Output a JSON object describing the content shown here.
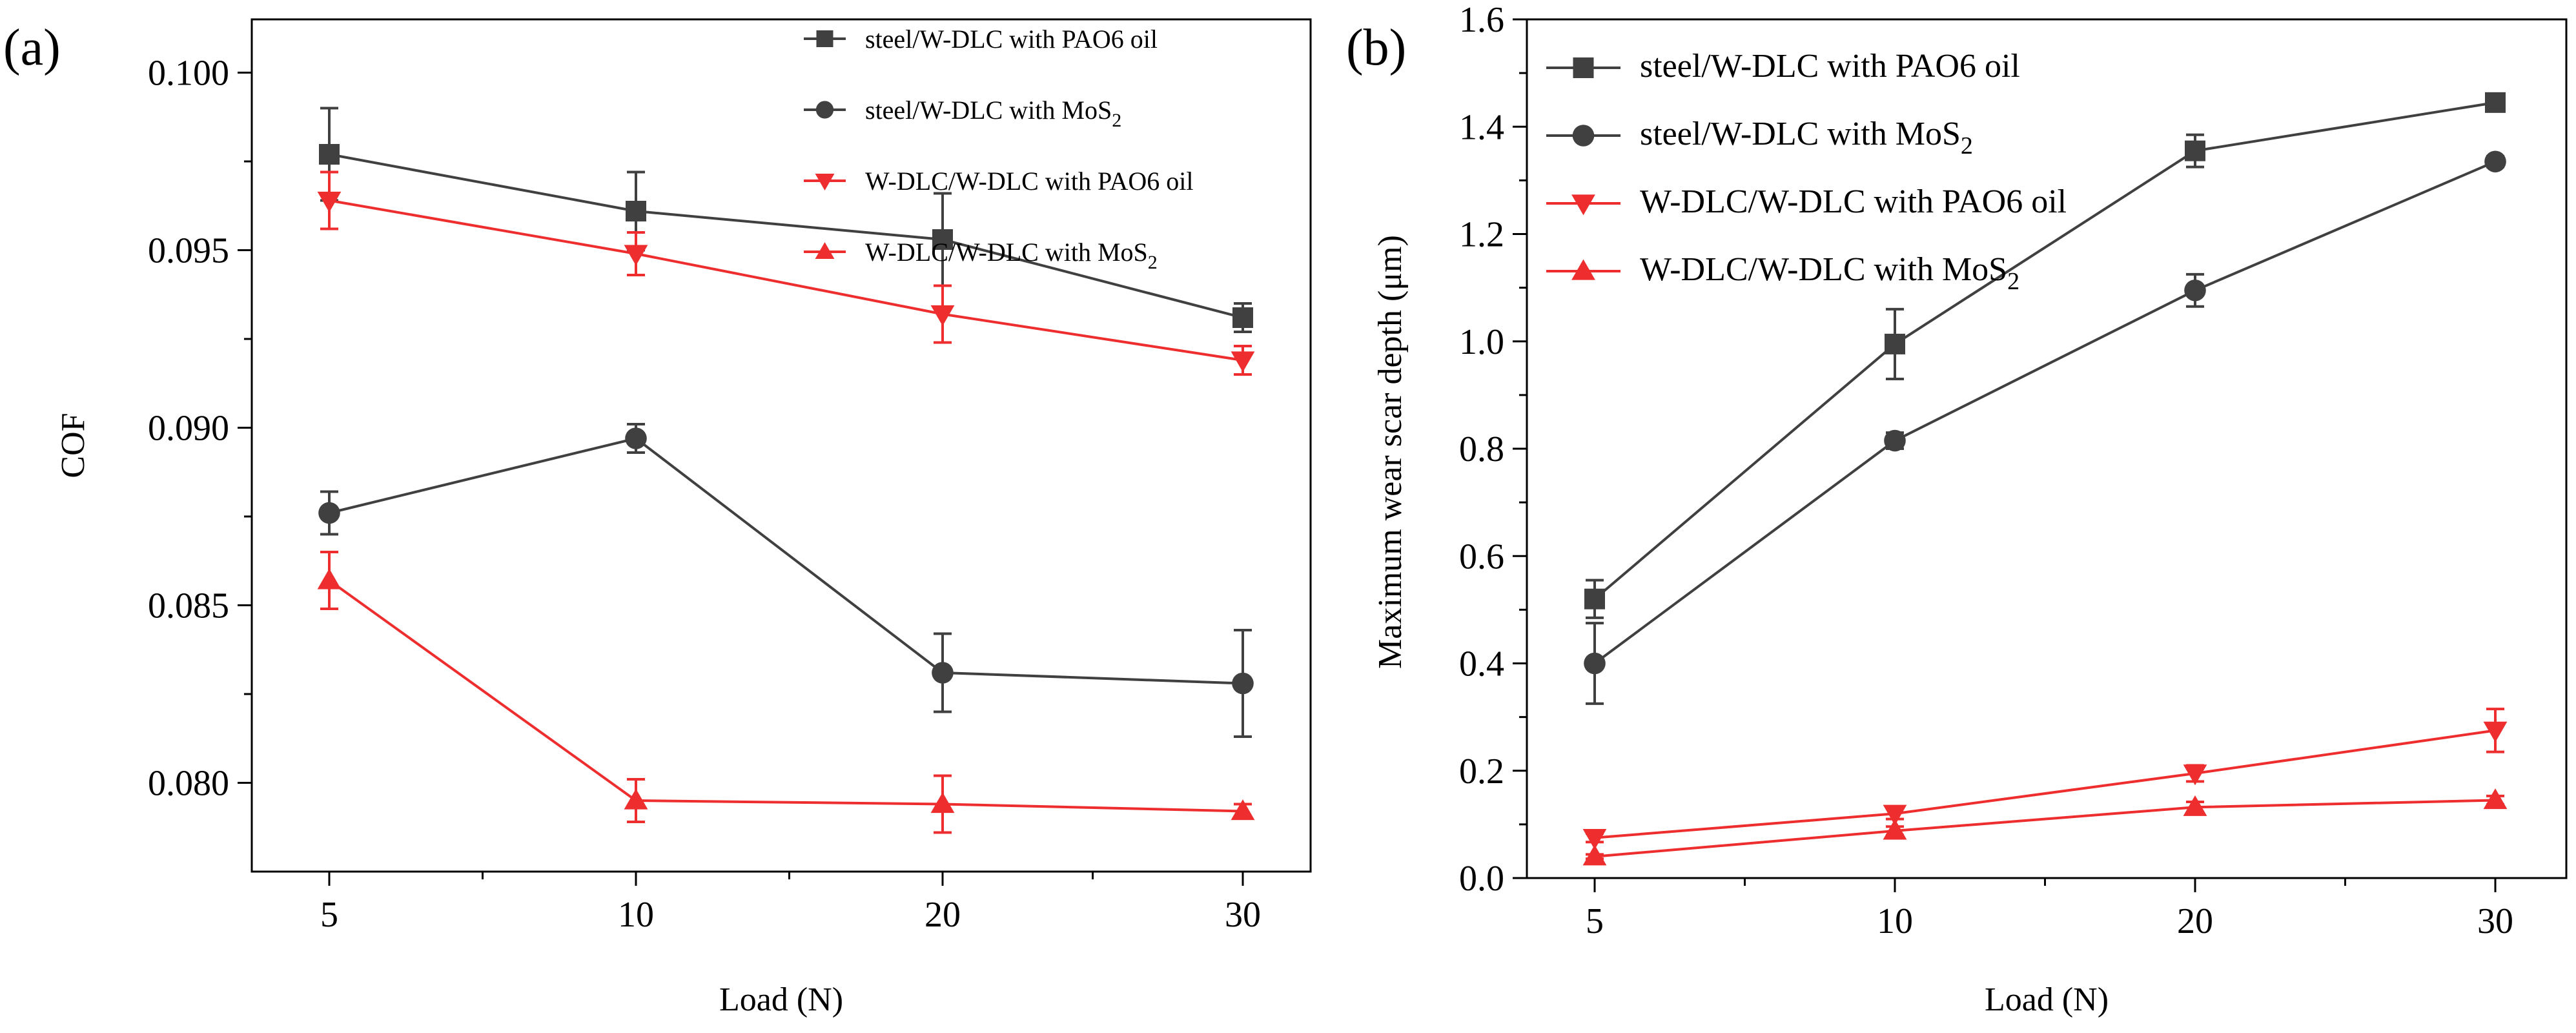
{
  "colors": {
    "black_series": "#404040",
    "red_series": "#ee2e2e"
  },
  "chart_data": [
    {
      "panel_label": "(a)",
      "type": "line",
      "title": "",
      "xlabel": "Load (N)",
      "ylabel": "COF",
      "categories": [
        "5",
        "10",
        "20",
        "30"
      ],
      "ylim": [
        0.0775,
        0.1015
      ],
      "yticks": [
        "0.080",
        "0.085",
        "0.090",
        "0.095",
        "0.100"
      ],
      "ytick_values": [
        0.08,
        0.085,
        0.09,
        0.095,
        0.1
      ],
      "legend_position": "top-right",
      "series": [
        {
          "name": "steel/W-DLC with PAO6 oil",
          "name_main": "steel/W-DLC with PAO6 oil",
          "name_sub": "",
          "name_tail": "",
          "marker": "square",
          "color": "#404040",
          "values": [
            0.0977,
            0.0961,
            0.0953,
            0.0931
          ],
          "errors": [
            0.0013,
            0.0011,
            0.0013,
            0.0004
          ]
        },
        {
          "name": "steel/W-DLC with MoS2",
          "name_main": "steel/W-DLC with MoS",
          "name_sub": "2",
          "name_tail": "",
          "marker": "circle",
          "color": "#404040",
          "values": [
            0.0876,
            0.0897,
            0.0831,
            0.0828
          ],
          "errors": [
            0.0006,
            0.0004,
            0.0011,
            0.0015
          ]
        },
        {
          "name": "W-DLC/W-DLC with PAO6 oil",
          "name_main": "W-DLC/W-DLC with PAO6 oil",
          "name_sub": "",
          "name_tail": "",
          "marker": "triangle-down",
          "color": "#ee2e2e",
          "values": [
            0.0964,
            0.0949,
            0.0932,
            0.0919
          ],
          "errors": [
            0.0008,
            0.0006,
            0.0008,
            0.0004
          ]
        },
        {
          "name": "W-DLC/W-DLC with MoS2",
          "name_main": "W-DLC/W-DLC with MoS",
          "name_sub": "2",
          "name_tail": "",
          "marker": "triangle-up",
          "color": "#ee2e2e",
          "values": [
            0.0857,
            0.0795,
            0.0794,
            0.0792
          ],
          "errors": [
            0.0008,
            0.0006,
            0.0008,
            0.0002
          ]
        }
      ]
    },
    {
      "panel_label": "(b)",
      "type": "line",
      "title": "",
      "xlabel": "Load (N)",
      "ylabel": "Maximum wear scar depth (μm)",
      "categories": [
        "5",
        "10",
        "20",
        "30"
      ],
      "ylim": [
        0.0,
        1.6
      ],
      "yticks": [
        "0.0",
        "0.2",
        "0.4",
        "0.6",
        "0.8",
        "1.0",
        "1.2",
        "1.4",
        "1.6"
      ],
      "ytick_values": [
        0.0,
        0.2,
        0.4,
        0.6,
        0.8,
        1.0,
        1.2,
        1.4,
        1.6
      ],
      "legend_position": "top-left",
      "series": [
        {
          "name": "steel/W-DLC with PAO6 oil",
          "name_main": "steel/W-DLC with PAO6 oil",
          "name_sub": "",
          "name_tail": "",
          "marker": "square",
          "color": "#404040",
          "values": [
            0.52,
            0.995,
            1.355,
            1.445
          ],
          "errors": [
            0.035,
            0.065,
            0.03,
            0.012
          ]
        },
        {
          "name": "steel/W-DLC with MoS2",
          "name_main": "steel/W-DLC with MoS",
          "name_sub": "2",
          "name_tail": "",
          "marker": "circle",
          "color": "#404040",
          "values": [
            0.4,
            0.815,
            1.095,
            1.335
          ],
          "errors": [
            0.075,
            0.015,
            0.03,
            0.01
          ]
        },
        {
          "name": "W-DLC/W-DLC with PAO6 oil",
          "name_main": "W-DLC/W-DLC with PAO6 oil",
          "name_sub": "",
          "name_tail": "",
          "marker": "triangle-down",
          "color": "#ee2e2e",
          "values": [
            0.075,
            0.12,
            0.195,
            0.275
          ],
          "errors": [
            0.008,
            0.01,
            0.015,
            0.04
          ]
        },
        {
          "name": "W-DLC/W-DLC with MoS2",
          "name_main": "W-DLC/W-DLC with MoS",
          "name_sub": "2",
          "name_tail": "",
          "marker": "triangle-up",
          "color": "#ee2e2e",
          "values": [
            0.04,
            0.088,
            0.132,
            0.145
          ],
          "errors": [
            0.004,
            0.008,
            0.01,
            0.008
          ]
        }
      ]
    }
  ]
}
